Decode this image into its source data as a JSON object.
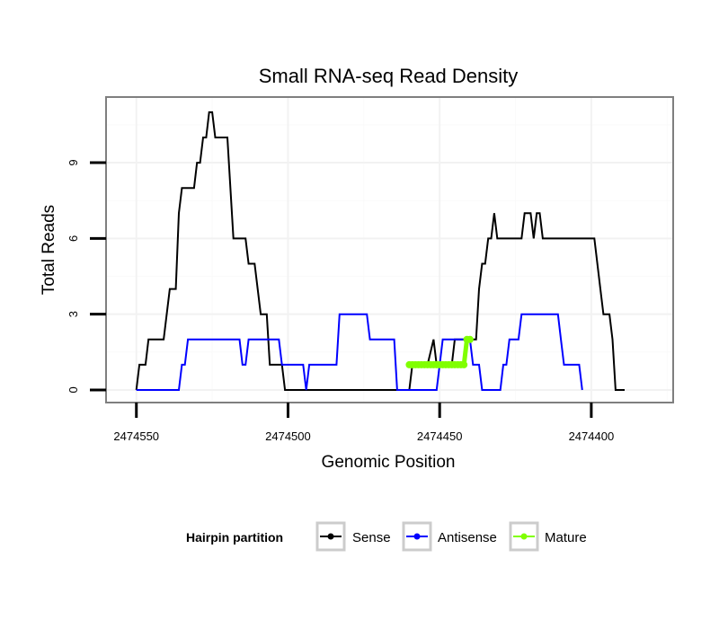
{
  "chart_data": {
    "type": "line",
    "title": "Small RNA-seq Read Density",
    "xlabel": "Genomic Position",
    "ylabel": "Total Reads",
    "x_reversed": true,
    "xlim": [
      2474560,
      2474373
    ],
    "ylim": [
      -0.5,
      11.6
    ],
    "x_ticks": [
      2474550,
      2474500,
      2474450,
      2474400
    ],
    "x_tick_labels": [
      "2474550",
      "2474500",
      "2474450",
      "2474400"
    ],
    "y_ticks": [
      0,
      3,
      6,
      9
    ],
    "y_tick_labels": [
      "0",
      "3",
      "6",
      "9"
    ],
    "grid": true,
    "legend": {
      "title": "Hairpin partition",
      "position": "bottom",
      "entries": [
        {
          "label": "Sense",
          "color": "#000000"
        },
        {
          "label": "Antisense",
          "color": "#0000ff"
        },
        {
          "label": "Mature",
          "color": "#80ff00"
        }
      ]
    },
    "series": [
      {
        "name": "Sense",
        "color": "#000000",
        "points": [
          [
            2474550,
            0
          ],
          [
            2474549,
            1
          ],
          [
            2474547,
            1
          ],
          [
            2474546,
            2
          ],
          [
            2474541,
            2
          ],
          [
            2474539,
            4
          ],
          [
            2474537,
            4
          ],
          [
            2474536,
            7
          ],
          [
            2474535,
            8
          ],
          [
            2474531,
            8
          ],
          [
            2474530,
            9
          ],
          [
            2474529,
            9
          ],
          [
            2474528,
            10
          ],
          [
            2474527,
            10
          ],
          [
            2474526,
            11
          ],
          [
            2474525,
            11
          ],
          [
            2474524,
            10
          ],
          [
            2474520,
            10
          ],
          [
            2474518,
            6
          ],
          [
            2474514,
            6
          ],
          [
            2474513,
            5
          ],
          [
            2474511,
            5
          ],
          [
            2474509,
            3
          ],
          [
            2474507,
            3
          ],
          [
            2474506,
            1
          ],
          [
            2474502,
            1
          ],
          [
            2474501,
            0
          ],
          [
            2474460,
            0
          ],
          [
            2474459,
            1
          ],
          [
            2474454,
            1
          ],
          [
            2474452,
            2
          ],
          [
            2474451,
            1
          ],
          [
            2474446,
            1
          ],
          [
            2474445,
            2
          ],
          [
            2474438,
            2
          ],
          [
            2474437,
            4
          ],
          [
            2474436,
            5
          ],
          [
            2474435,
            5
          ],
          [
            2474434,
            6
          ],
          [
            2474433,
            6
          ],
          [
            2474432,
            7
          ],
          [
            2474431,
            6
          ],
          [
            2474423,
            6
          ],
          [
            2474422,
            7
          ],
          [
            2474420,
            7
          ],
          [
            2474419,
            6
          ],
          [
            2474418,
            7
          ],
          [
            2474417,
            7
          ],
          [
            2474416,
            6
          ],
          [
            2474399,
            6
          ],
          [
            2474397,
            4
          ],
          [
            2474396,
            3
          ],
          [
            2474394,
            3
          ],
          [
            2474393,
            2
          ],
          [
            2474392,
            0
          ],
          [
            2474389,
            0
          ]
        ]
      },
      {
        "name": "Antisense",
        "color": "#0000ff",
        "points": [
          [
            2474550,
            0
          ],
          [
            2474536,
            0
          ],
          [
            2474535,
            1
          ],
          [
            2474534,
            1
          ],
          [
            2474533,
            2
          ],
          [
            2474516,
            2
          ],
          [
            2474515,
            1
          ],
          [
            2474514,
            1
          ],
          [
            2474513,
            2
          ],
          [
            2474503,
            2
          ],
          [
            2474502,
            1
          ],
          [
            2474495,
            1
          ],
          [
            2474494,
            0
          ],
          [
            2474493,
            1
          ],
          [
            2474484,
            1
          ],
          [
            2474483,
            3
          ],
          [
            2474474,
            3
          ],
          [
            2474473,
            2
          ],
          [
            2474465,
            2
          ],
          [
            2474464,
            0
          ],
          [
            2474451,
            0
          ],
          [
            2474450,
            1
          ],
          [
            2474449,
            2
          ],
          [
            2474440,
            2
          ],
          [
            2474439,
            1
          ],
          [
            2474437,
            1
          ],
          [
            2474436,
            0
          ],
          [
            2474430,
            0
          ],
          [
            2474429,
            1
          ],
          [
            2474428,
            1
          ],
          [
            2474427,
            2
          ],
          [
            2474424,
            2
          ],
          [
            2474423,
            3
          ],
          [
            2474411,
            3
          ],
          [
            2474410,
            2
          ],
          [
            2474409,
            1
          ],
          [
            2474404,
            1
          ],
          [
            2474403,
            0
          ]
        ]
      },
      {
        "name": "Mature",
        "color": "#80ff00",
        "points": [
          [
            2474460,
            1
          ],
          [
            2474459,
            1
          ],
          [
            2474458,
            1
          ],
          [
            2474457,
            1
          ],
          [
            2474456,
            1
          ],
          [
            2474455,
            1
          ],
          [
            2474454,
            1
          ],
          [
            2474453,
            1
          ],
          [
            2474452,
            1
          ],
          [
            2474451,
            1
          ],
          [
            2474450,
            1
          ],
          [
            2474449,
            1
          ],
          [
            2474448,
            1
          ],
          [
            2474447,
            1
          ],
          [
            2474446,
            1
          ],
          [
            2474445,
            1
          ],
          [
            2474444,
            1
          ],
          [
            2474443,
            1
          ],
          [
            2474442,
            1
          ],
          [
            2474441,
            2
          ],
          [
            2474440,
            2
          ]
        ]
      }
    ]
  }
}
